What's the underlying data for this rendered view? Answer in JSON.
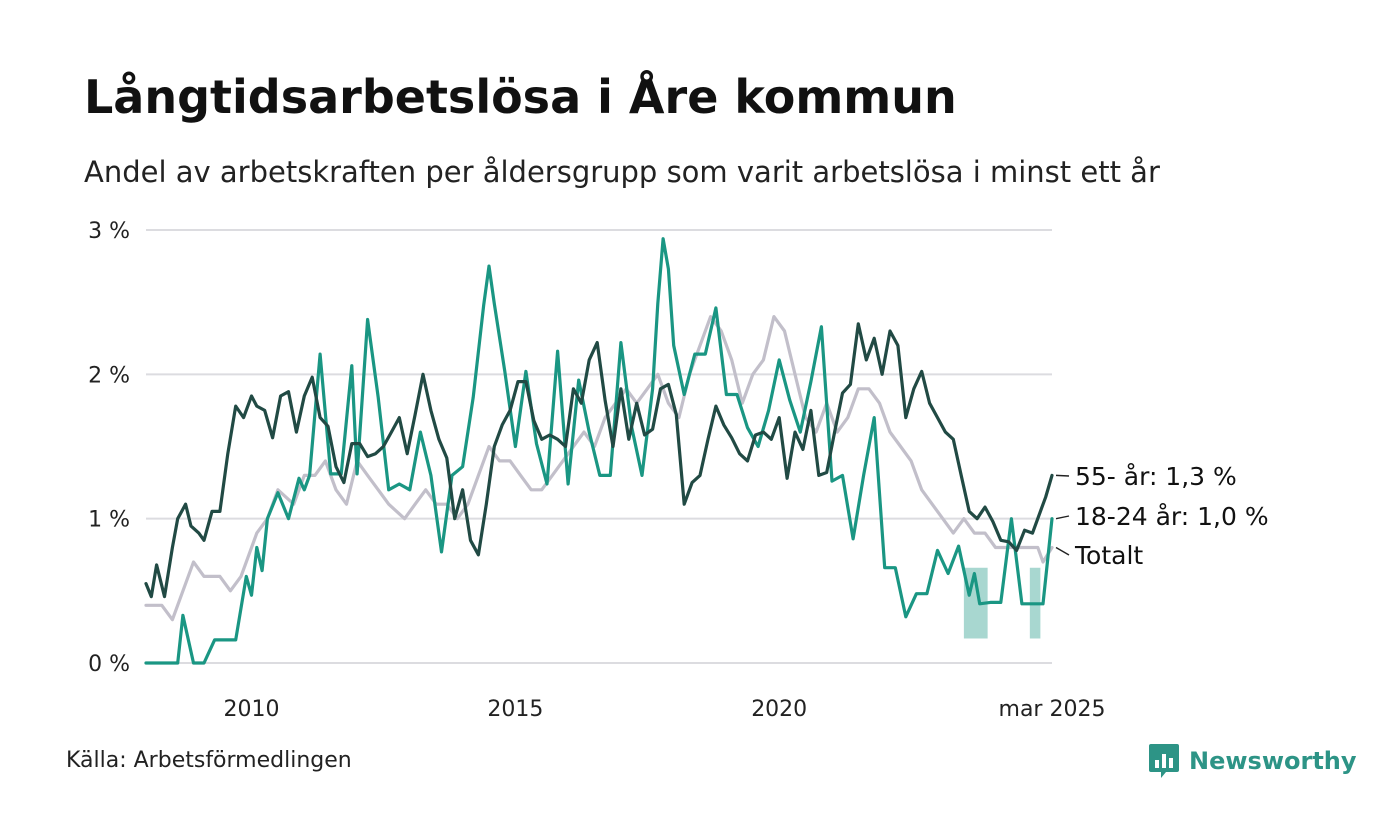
{
  "title": "Långtidsarbetslösa i Åre kommun",
  "subtitle": "Andel av arbetskraften per åldersgrupp som varit arbetslösa i minst ett år",
  "source": "Källa: Arbetsförmedlingen",
  "brand": "Newsworthy",
  "chart_data": {
    "type": "line",
    "ylim": [
      0,
      3
    ],
    "xlim": [
      2008.0,
      2025.17
    ],
    "yticks": [
      {
        "value": 0,
        "label": "0 %"
      },
      {
        "value": 1,
        "label": "1 %"
      },
      {
        "value": 2,
        "label": "2 %"
      },
      {
        "value": 3,
        "label": "3 %"
      }
    ],
    "xticks": [
      {
        "value": 2010,
        "label": "2010"
      },
      {
        "value": 2015,
        "label": "2015"
      },
      {
        "value": 2020,
        "label": "2020"
      },
      {
        "value": 2025.17,
        "label": "mar 2025"
      }
    ],
    "grid": true,
    "series": [
      {
        "name": "Totalt",
        "label": "Totalt",
        "color": "#c2bfca",
        "x": [
          2008.0,
          2008.3,
          2008.5,
          2008.9,
          2009.1,
          2009.4,
          2009.6,
          2009.8,
          2010.1,
          2010.3,
          2010.5,
          2010.8,
          2011.0,
          2011.2,
          2011.4,
          2011.6,
          2011.8,
          2012.0,
          2012.2,
          2012.4,
          2012.6,
          2012.9,
          2013.1,
          2013.3,
          2013.5,
          2013.7,
          2013.9,
          2014.1,
          2014.3,
          2014.5,
          2014.7,
          2014.9,
          2015.1,
          2015.3,
          2015.5,
          2015.7,
          2015.9,
          2016.1,
          2016.3,
          2016.5,
          2016.7,
          2016.9,
          2017.1,
          2017.3,
          2017.5,
          2017.7,
          2017.9,
          2018.1,
          2018.3,
          2018.5,
          2018.7,
          2018.9,
          2019.1,
          2019.3,
          2019.5,
          2019.7,
          2019.9,
          2020.1,
          2020.3,
          2020.5,
          2020.7,
          2020.9,
          2021.1,
          2021.3,
          2021.5,
          2021.7,
          2021.9,
          2022.1,
          2022.3,
          2022.5,
          2022.7,
          2022.9,
          2023.1,
          2023.3,
          2023.5,
          2023.7,
          2023.9,
          2024.1,
          2024.3,
          2024.5,
          2024.7,
          2024.9,
          2025.0,
          2025.17
        ],
        "values": [
          0.4,
          0.4,
          0.3,
          0.7,
          0.6,
          0.6,
          0.5,
          0.6,
          0.9,
          1.0,
          1.2,
          1.1,
          1.3,
          1.3,
          1.4,
          1.2,
          1.1,
          1.4,
          1.3,
          1.2,
          1.1,
          1.0,
          1.1,
          1.2,
          1.1,
          1.1,
          1.0,
          1.1,
          1.3,
          1.5,
          1.4,
          1.4,
          1.3,
          1.2,
          1.2,
          1.3,
          1.4,
          1.5,
          1.6,
          1.5,
          1.7,
          1.8,
          1.9,
          1.8,
          1.9,
          2.0,
          1.8,
          1.7,
          2.0,
          2.2,
          2.4,
          2.3,
          2.1,
          1.8,
          2.0,
          2.1,
          2.4,
          2.3,
          2.0,
          1.7,
          1.6,
          1.8,
          1.6,
          1.7,
          1.9,
          1.9,
          1.8,
          1.6,
          1.5,
          1.4,
          1.2,
          1.1,
          1.0,
          0.9,
          1.0,
          0.9,
          0.9,
          0.8,
          0.8,
          0.8,
          0.8,
          0.8,
          0.7,
          0.8
        ]
      },
      {
        "name": "18-24 år",
        "label": "18-24 år: 1,0 %",
        "color": "#1a9683",
        "x": [
          2008.0,
          2008.3,
          2008.5,
          2008.6,
          2008.7,
          2008.9,
          2009.1,
          2009.3,
          2009.5,
          2009.7,
          2009.9,
          2010.0,
          2010.1,
          2010.2,
          2010.3,
          2010.5,
          2010.7,
          2010.9,
          2011.0,
          2011.1,
          2011.3,
          2011.5,
          2011.7,
          2011.9,
          2012.0,
          2012.2,
          2012.4,
          2012.6,
          2012.8,
          2013.0,
          2013.2,
          2013.4,
          2013.6,
          2013.8,
          2014.0,
          2014.2,
          2014.4,
          2014.5,
          2014.6,
          2014.8,
          2015.0,
          2015.2,
          2015.4,
          2015.6,
          2015.8,
          2016.0,
          2016.2,
          2016.4,
          2016.6,
          2016.8,
          2017.0,
          2017.2,
          2017.4,
          2017.6,
          2017.7,
          2017.8,
          2017.9,
          2018.0,
          2018.2,
          2018.4,
          2018.6,
          2018.8,
          2019.0,
          2019.2,
          2019.4,
          2019.6,
          2019.8,
          2020.0,
          2020.2,
          2020.4,
          2020.6,
          2020.8,
          2021.0,
          2021.2,
          2021.4,
          2021.6,
          2021.8,
          2022.0,
          2022.2,
          2022.4,
          2022.6,
          2022.8,
          2023.0,
          2023.2,
          2023.4,
          2023.6,
          2023.7,
          2023.8,
          2024.0,
          2024.2,
          2024.4,
          2024.6,
          2024.8,
          2025.0,
          2025.17
        ],
        "values": [
          0,
          0,
          0,
          0,
          0.33,
          0,
          0,
          0.16,
          0.16,
          0.16,
          0.6,
          0.47,
          0.8,
          0.64,
          1.0,
          1.18,
          1.0,
          1.28,
          1.2,
          1.3,
          2.14,
          1.31,
          1.31,
          2.06,
          1.31,
          2.38,
          1.84,
          1.2,
          1.24,
          1.2,
          1.6,
          1.3,
          0.77,
          1.3,
          1.36,
          1.84,
          2.48,
          2.75,
          2.49,
          2.02,
          1.5,
          2.02,
          1.52,
          1.24,
          2.16,
          1.24,
          1.96,
          1.6,
          1.3,
          1.3,
          2.22,
          1.64,
          1.3,
          1.9,
          2.49,
          2.94,
          2.73,
          2.2,
          1.86,
          2.14,
          2.14,
          2.46,
          1.86,
          1.86,
          1.63,
          1.5,
          1.75,
          2.1,
          1.82,
          1.6,
          1.95,
          2.33,
          1.26,
          1.3,
          0.86,
          1.3,
          1.7,
          0.66,
          0.66,
          0.32,
          0.48,
          0.48,
          0.78,
          0.62,
          0.81,
          0.47,
          0.62,
          0.41,
          0.42,
          0.42,
          1.0,
          0.41,
          0.41,
          0.41,
          1.0
        ],
        "band": [
          {
            "x": [
              2023.5,
              2023.95
            ],
            "lower": 0.17,
            "upper": 0.66
          },
          {
            "x": [
              2024.75,
              2024.95
            ],
            "lower": 0.17,
            "upper": 0.66
          }
        ]
      },
      {
        "name": "55- år",
        "label": "55- år: 1,3 %",
        "color": "#214a44",
        "x": [
          2008.0,
          2008.1,
          2008.2,
          2008.35,
          2008.5,
          2008.6,
          2008.75,
          2008.85,
          2009.0,
          2009.1,
          2009.25,
          2009.4,
          2009.55,
          2009.7,
          2009.85,
          2010.0,
          2010.1,
          2010.25,
          2010.4,
          2010.55,
          2010.7,
          2010.85,
          2011.0,
          2011.15,
          2011.3,
          2011.45,
          2011.6,
          2011.75,
          2011.9,
          2012.05,
          2012.2,
          2012.35,
          2012.5,
          2012.65,
          2012.8,
          2012.95,
          2013.1,
          2013.25,
          2013.4,
          2013.55,
          2013.7,
          2013.85,
          2014.0,
          2014.15,
          2014.3,
          2014.45,
          2014.6,
          2014.75,
          2014.9,
          2015.05,
          2015.2,
          2015.35,
          2015.5,
          2015.65,
          2015.8,
          2015.95,
          2016.1,
          2016.25,
          2016.4,
          2016.55,
          2016.7,
          2016.85,
          2017.0,
          2017.15,
          2017.3,
          2017.45,
          2017.6,
          2017.75,
          2017.9,
          2018.05,
          2018.2,
          2018.35,
          2018.5,
          2018.65,
          2018.8,
          2018.95,
          2019.1,
          2019.25,
          2019.4,
          2019.55,
          2019.7,
          2019.85,
          2020.0,
          2020.15,
          2020.3,
          2020.45,
          2020.6,
          2020.75,
          2020.9,
          2021.05,
          2021.2,
          2021.35,
          2021.5,
          2021.65,
          2021.8,
          2021.95,
          2022.1,
          2022.25,
          2022.4,
          2022.55,
          2022.7,
          2022.85,
          2023.0,
          2023.15,
          2023.3,
          2023.45,
          2023.6,
          2023.75,
          2023.9,
          2024.05,
          2024.2,
          2024.35,
          2024.5,
          2024.65,
          2024.8,
          2024.95,
          2025.05,
          2025.17
        ],
        "values": [
          0.55,
          0.46,
          0.68,
          0.46,
          0.8,
          1.0,
          1.1,
          0.95,
          0.9,
          0.85,
          1.05,
          1.05,
          1.45,
          1.78,
          1.7,
          1.85,
          1.78,
          1.75,
          1.56,
          1.85,
          1.88,
          1.6,
          1.85,
          1.98,
          1.7,
          1.64,
          1.36,
          1.25,
          1.52,
          1.52,
          1.43,
          1.45,
          1.5,
          1.6,
          1.7,
          1.45,
          1.72,
          2.0,
          1.75,
          1.55,
          1.42,
          1.0,
          1.2,
          0.85,
          0.75,
          1.1,
          1.5,
          1.65,
          1.75,
          1.95,
          1.95,
          1.68,
          1.55,
          1.58,
          1.55,
          1.5,
          1.9,
          1.8,
          2.1,
          2.22,
          1.82,
          1.5,
          1.9,
          1.55,
          1.8,
          1.58,
          1.62,
          1.9,
          1.93,
          1.72,
          1.1,
          1.25,
          1.3,
          1.55,
          1.78,
          1.65,
          1.56,
          1.45,
          1.4,
          1.58,
          1.6,
          1.55,
          1.7,
          1.28,
          1.6,
          1.48,
          1.75,
          1.3,
          1.32,
          1.6,
          1.87,
          1.93,
          2.35,
          2.1,
          2.25,
          2.0,
          2.3,
          2.2,
          1.7,
          1.9,
          2.02,
          1.8,
          1.7,
          1.6,
          1.55,
          1.3,
          1.05,
          1.0,
          1.08,
          0.98,
          0.85,
          0.84,
          0.78,
          0.92,
          0.9,
          1.05,
          1.15,
          1.3
        ]
      }
    ],
    "legend": "direct labels at line ends"
  }
}
